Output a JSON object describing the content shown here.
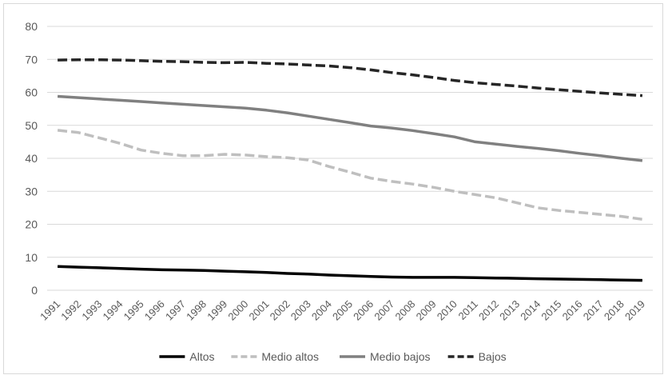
{
  "chart_data": {
    "type": "line",
    "title": "",
    "xlabel": "",
    "ylabel": "",
    "ylim": [
      0,
      80
    ],
    "yticks": [
      "0",
      "10",
      "20",
      "30",
      "40",
      "50",
      "60",
      "70",
      "80"
    ],
    "grid": "horizontal",
    "legend": "bottom",
    "x": [
      "1991",
      "1992",
      "1993",
      "1994",
      "1995",
      "1996",
      "1997",
      "1998",
      "1999",
      "2000",
      "2001",
      "2002",
      "2003",
      "2004",
      "2005",
      "2006",
      "2007",
      "2008",
      "2009",
      "2010",
      "2011",
      "2012",
      "2013",
      "2014",
      "2015",
      "2016",
      "2017",
      "2018",
      "2019"
    ],
    "series": [
      {
        "name": "Altos",
        "color": "#000000",
        "dash": "solid",
        "values": [
          7.2,
          7.0,
          6.8,
          6.6,
          6.4,
          6.2,
          6.1,
          6.0,
          5.8,
          5.6,
          5.4,
          5.1,
          4.9,
          4.6,
          4.4,
          4.2,
          4.0,
          3.9,
          3.9,
          3.9,
          3.8,
          3.7,
          3.6,
          3.5,
          3.4,
          3.3,
          3.2,
          3.1,
          3.0
        ]
      },
      {
        "name": "Medio altos",
        "color": "#bfbfbf",
        "dash": "dashed",
        "values": [
          48.5,
          47.8,
          46.2,
          44.5,
          42.5,
          41.5,
          40.8,
          40.8,
          41.2,
          41.0,
          40.5,
          40.2,
          39.5,
          37.5,
          35.8,
          34.0,
          33.0,
          32.2,
          31.2,
          30.0,
          29.0,
          28.0,
          26.5,
          25.0,
          24.2,
          23.6,
          23.0,
          22.4,
          21.5
        ]
      },
      {
        "name": "Medio bajos",
        "color": "#808080",
        "dash": "solid",
        "values": [
          58.8,
          58.4,
          58.0,
          57.6,
          57.2,
          56.8,
          56.4,
          56.0,
          55.6,
          55.2,
          54.6,
          53.8,
          52.8,
          51.8,
          50.8,
          49.8,
          49.2,
          48.4,
          47.5,
          46.5,
          45.0,
          44.3,
          43.6,
          43.0,
          42.3,
          41.5,
          40.8,
          40.0,
          39.3
        ]
      },
      {
        "name": "Bajos",
        "color": "#262626",
        "dash": "dashed",
        "values": [
          69.8,
          69.9,
          69.9,
          69.8,
          69.6,
          69.4,
          69.3,
          69.1,
          69.0,
          69.1,
          68.8,
          68.6,
          68.3,
          68.0,
          67.5,
          66.8,
          66.0,
          65.3,
          64.5,
          63.6,
          62.9,
          62.4,
          61.9,
          61.3,
          60.8,
          60.3,
          59.8,
          59.4,
          59.0
        ]
      }
    ]
  }
}
